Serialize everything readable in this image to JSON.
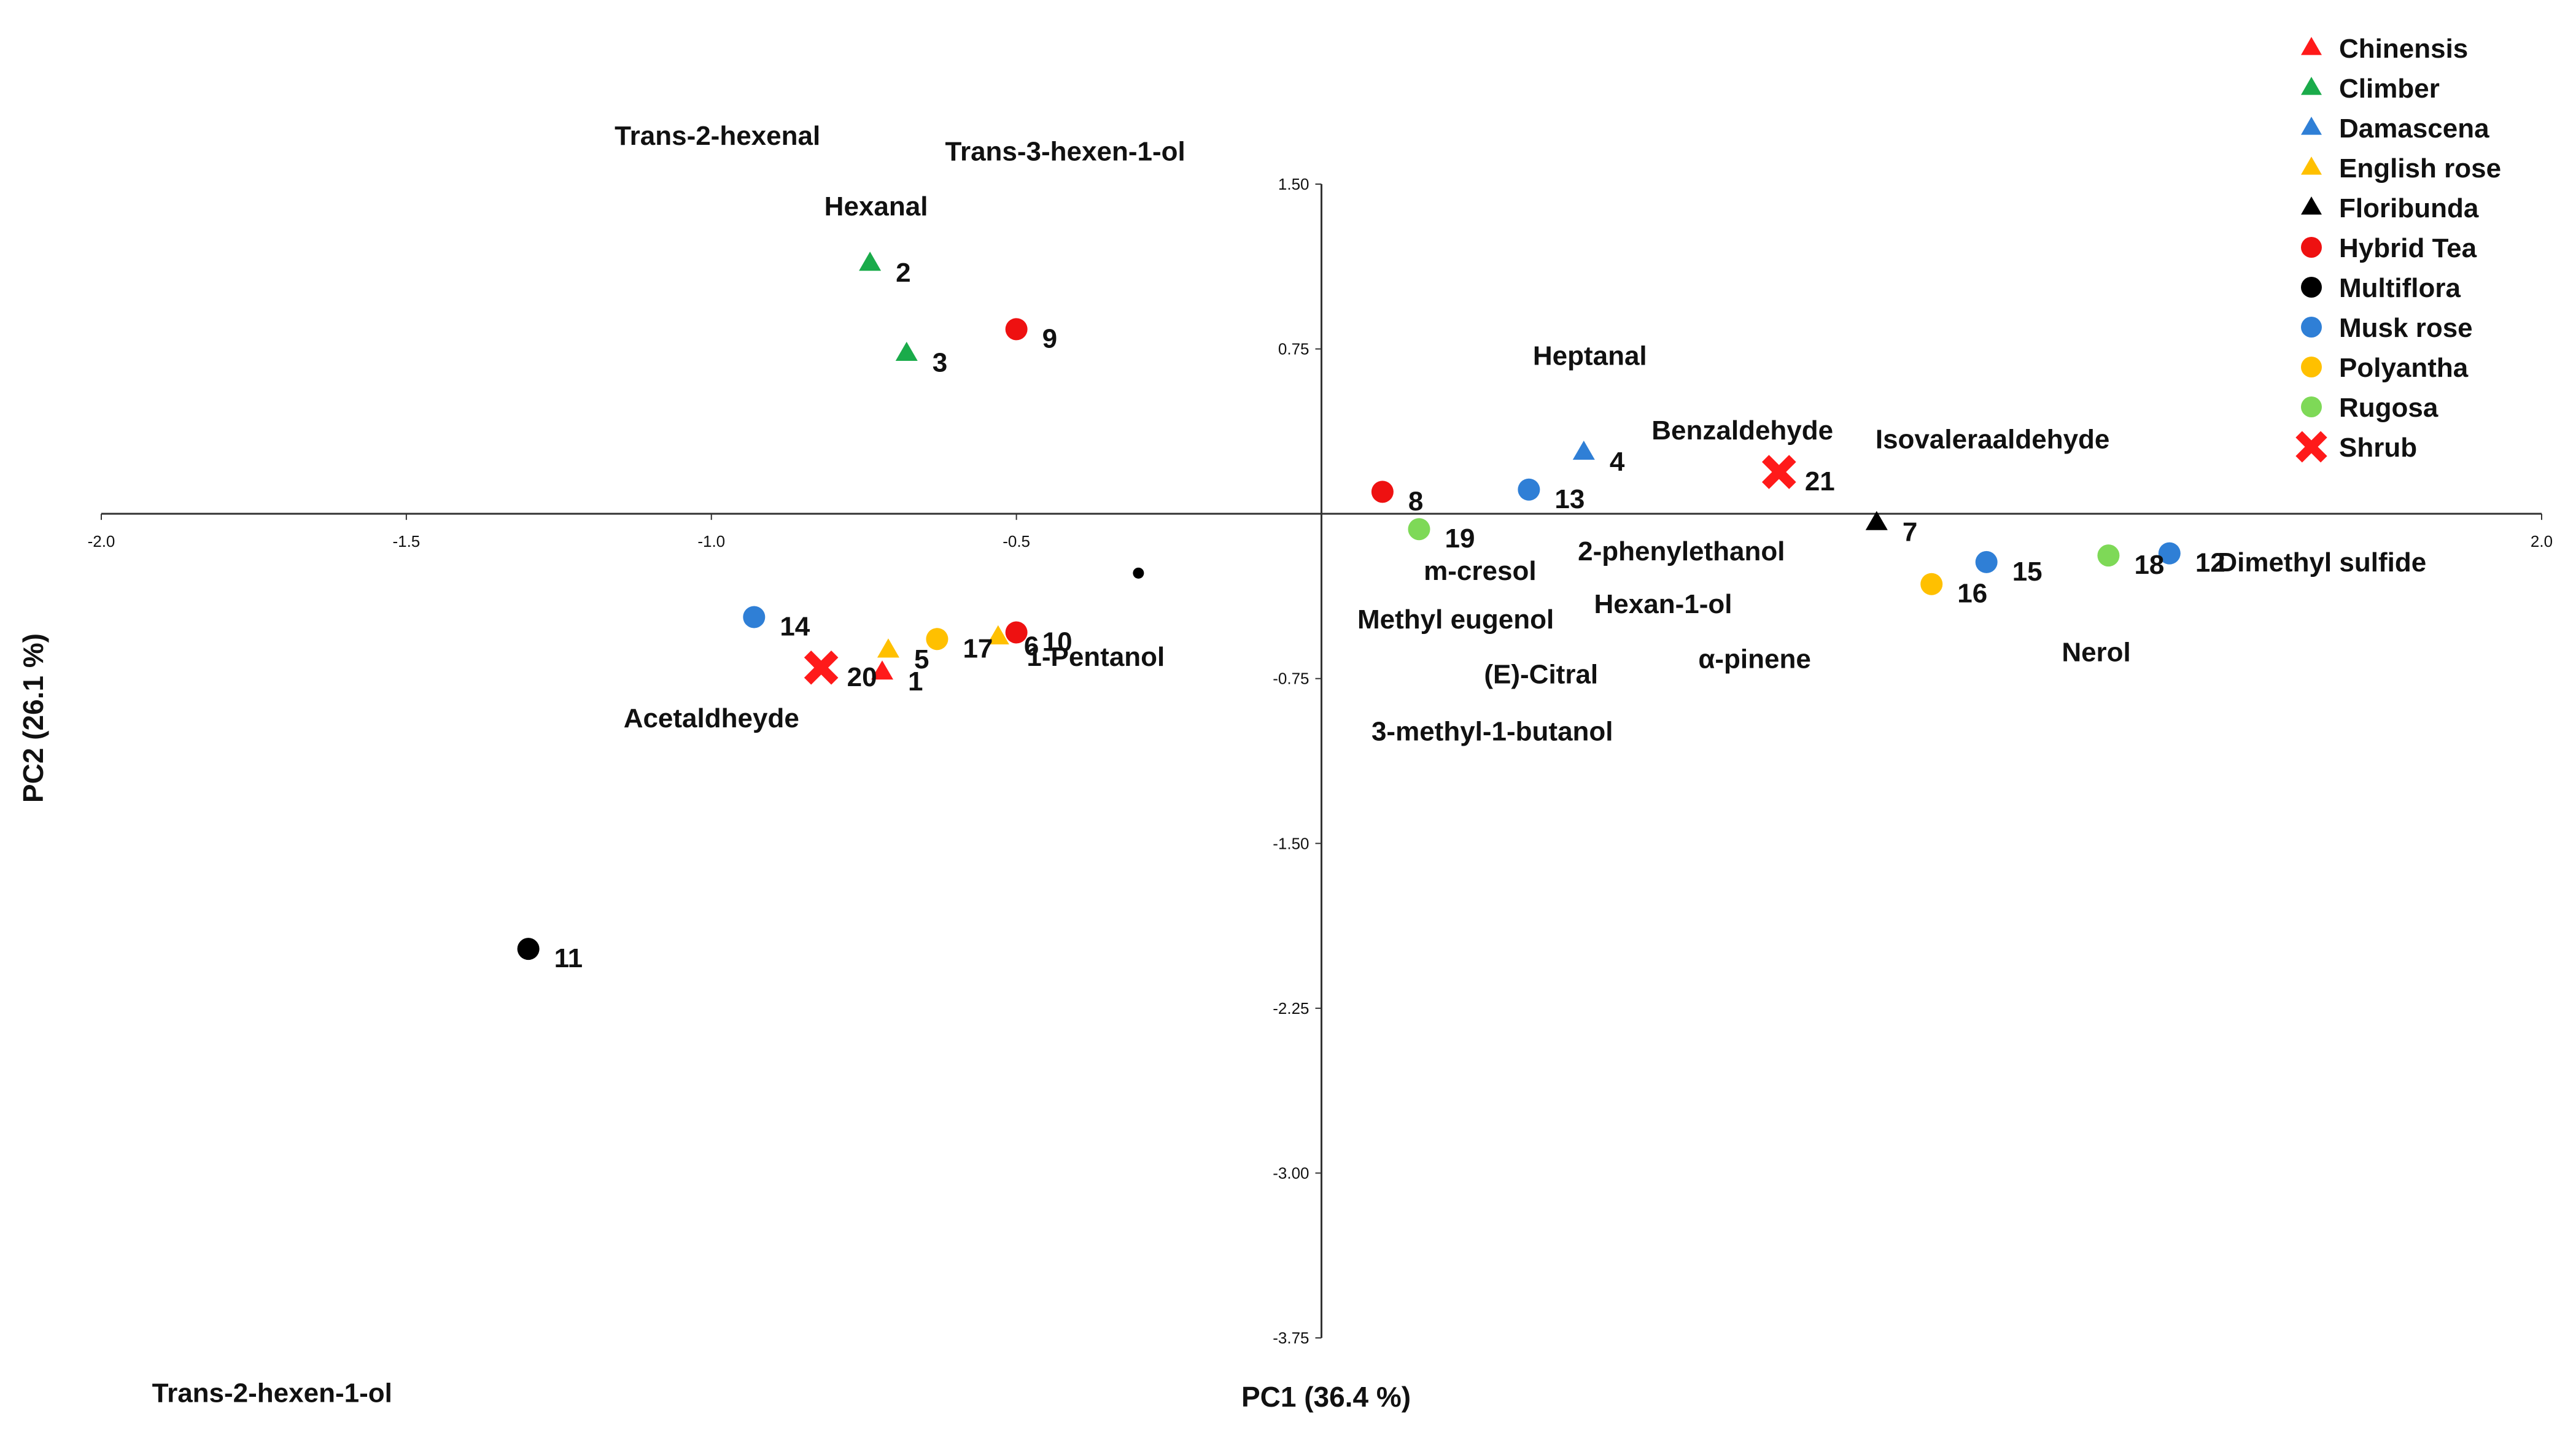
{
  "chart_data": {
    "type": "scatter",
    "title": "",
    "xlabel": "PC1 (36.4 %)",
    "ylabel": "PC2 (26.1 %)",
    "xlim": [
      -2.0,
      2.0
    ],
    "ylim": [
      -3.75,
      1.5
    ],
    "grid": false,
    "legend_position": "top-right",
    "x_ticks": [
      {
        "value": -2.0,
        "label": "-2.0"
      },
      {
        "value": -1.5,
        "label": "-1.5"
      },
      {
        "value": -1.0,
        "label": "-1.0"
      },
      {
        "value": -0.5,
        "label": "-0.5"
      },
      {
        "value": 2.0,
        "label": "2.0"
      }
    ],
    "y_ticks": [
      {
        "value": 1.5,
        "label": "1.50"
      },
      {
        "value": 0.75,
        "label": "0.75"
      },
      {
        "value": -0.75,
        "label": "-0.75"
      },
      {
        "value": -1.5,
        "label": "-1.50"
      },
      {
        "value": -2.25,
        "label": "-2.25"
      },
      {
        "value": -3.0,
        "label": "-3.00"
      },
      {
        "value": -3.75,
        "label": "-3.75"
      }
    ],
    "groups": [
      {
        "id": "chinensis",
        "name": "Chinensis",
        "marker": "triangle",
        "color": "#ff1a1a"
      },
      {
        "id": "climber",
        "name": "Climber",
        "marker": "triangle",
        "color": "#1aab4a"
      },
      {
        "id": "damascena",
        "name": "Damascena",
        "marker": "triangle",
        "color": "#2f7fd6"
      },
      {
        "id": "english-rose",
        "name": "English rose",
        "marker": "triangle",
        "color": "#ffc000"
      },
      {
        "id": "floribunda",
        "name": "Floribunda",
        "marker": "triangle",
        "color": "#000000"
      },
      {
        "id": "hybrid-tea",
        "name": "Hybrid Tea",
        "marker": "circle",
        "color": "#ee1111"
      },
      {
        "id": "multiflora",
        "name": "Multiflora",
        "marker": "circle",
        "color": "#000000"
      },
      {
        "id": "musk-rose",
        "name": "Musk rose",
        "marker": "circle",
        "color": "#2f7fd6"
      },
      {
        "id": "polyantha",
        "name": "Polyantha",
        "marker": "circle",
        "color": "#ffc000"
      },
      {
        "id": "rugosa",
        "name": "Rugosa",
        "marker": "circle",
        "color": "#7ed957"
      },
      {
        "id": "shrub",
        "name": "Shrub",
        "marker": "cross",
        "color": "#ff1a1a"
      }
    ],
    "points": [
      {
        "label": "1",
        "group": "chinensis",
        "x": -0.72,
        "y": -0.72
      },
      {
        "label": "2",
        "group": "climber",
        "x": -0.74,
        "y": 1.14
      },
      {
        "label": "3",
        "group": "climber",
        "x": -0.68,
        "y": 0.73
      },
      {
        "label": "4",
        "group": "damascena",
        "x": 0.43,
        "y": 0.28
      },
      {
        "label": "5",
        "group": "english-rose",
        "x": -0.71,
        "y": -0.62
      },
      {
        "label": "6",
        "group": "english-rose",
        "x": -0.53,
        "y": -0.56
      },
      {
        "label": "7",
        "group": "floribunda",
        "x": 0.91,
        "y": -0.04
      },
      {
        "label": "8",
        "group": "hybrid-tea",
        "x": 0.1,
        "y": 0.1
      },
      {
        "label": "9",
        "group": "hybrid-tea",
        "x": -0.5,
        "y": 0.84
      },
      {
        "label": "10",
        "group": "hybrid-tea",
        "x": -0.5,
        "y": -0.54
      },
      {
        "label": "11",
        "group": "multiflora",
        "x": -1.3,
        "y": -1.98
      },
      {
        "label": "12",
        "group": "musk-rose",
        "x": 1.39,
        "y": -0.18
      },
      {
        "label": "13",
        "group": "musk-rose",
        "x": 0.34,
        "y": 0.11
      },
      {
        "label": "14",
        "group": "musk-rose",
        "x": -0.93,
        "y": -0.47
      },
      {
        "label": "15",
        "group": "musk-rose",
        "x": 1.09,
        "y": -0.22
      },
      {
        "label": "16",
        "group": "polyantha",
        "x": 1.0,
        "y": -0.32
      },
      {
        "label": "17",
        "group": "polyantha",
        "x": -0.63,
        "y": -0.57
      },
      {
        "label": "18",
        "group": "rugosa",
        "x": 1.29,
        "y": -0.19
      },
      {
        "label": "19",
        "group": "rugosa",
        "x": 0.16,
        "y": -0.07
      },
      {
        "label": "20",
        "group": "shrub",
        "x": -0.82,
        "y": -0.7
      },
      {
        "label": "21",
        "group": "shrub",
        "x": 0.75,
        "y": 0.19
      }
    ],
    "variables": [
      {
        "name": "Trans-2-hexenal",
        "x": -0.99,
        "y": 1.72
      },
      {
        "name": "Trans-3-hexen-1-ol",
        "x": -0.42,
        "y": 1.65
      },
      {
        "name": "Hexanal",
        "x": -0.73,
        "y": 1.4
      },
      {
        "name": "Heptanal",
        "x": 0.44,
        "y": 0.72
      },
      {
        "name": "Benzaldehyde",
        "x": 0.69,
        "y": 0.38
      },
      {
        "name": "Isovaleraaldehyde",
        "x": 1.1,
        "y": 0.34
      },
      {
        "name": "m-cresol",
        "x": 0.26,
        "y": -0.26
      },
      {
        "name": "2-phenylethanol",
        "x": 0.59,
        "y": -0.17
      },
      {
        "name": "Methyl eugenol",
        "x": 0.22,
        "y": -0.48
      },
      {
        "name": "Hexan-1-ol",
        "x": 0.56,
        "y": -0.41
      },
      {
        "name": "(E)-Citral",
        "x": 0.36,
        "y": -0.73
      },
      {
        "name": "α-pinene",
        "x": 0.71,
        "y": -0.66
      },
      {
        "name": "3-methyl-1-butanol",
        "x": 0.28,
        "y": -0.99
      },
      {
        "name": "Dimethyl sulfide",
        "x": 1.64,
        "y": -0.22
      },
      {
        "name": "Nerol",
        "x": 1.27,
        "y": -0.63
      },
      {
        "name": "1-Pentanol",
        "x": -0.37,
        "y": -0.65
      },
      {
        "name": "Acetaldheyde",
        "x": -1.0,
        "y": -0.93
      },
      {
        "name": "Trans-2-hexen-1-ol",
        "x": -1.72,
        "y": -4.0
      }
    ]
  }
}
